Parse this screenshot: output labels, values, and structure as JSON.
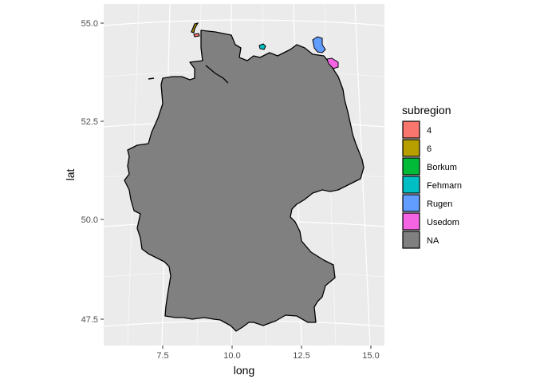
{
  "chart_data": {
    "type": "map",
    "xlabel": "long",
    "ylabel": "lat",
    "x_ticks": [
      "7.5",
      "10.0",
      "12.5",
      "15.0"
    ],
    "y_ticks": [
      "55.0",
      "52.5",
      "50.0",
      "47.5"
    ],
    "legend": {
      "title": "subregion",
      "placement": "right",
      "entries": [
        {
          "label": "4",
          "color": "#F8766D"
        },
        {
          "label": "6",
          "color": "#B79F00"
        },
        {
          "label": "Borkum",
          "color": "#00BA38"
        },
        {
          "label": "Fehmarn",
          "color": "#00BFC4"
        },
        {
          "label": "Rugen",
          "color": "#619CFF"
        },
        {
          "label": "Usedom",
          "color": "#F564E3"
        },
        {
          "label": "NA",
          "color": "#808080"
        }
      ]
    },
    "grid": true,
    "panel_background": "#EBEBEB"
  }
}
